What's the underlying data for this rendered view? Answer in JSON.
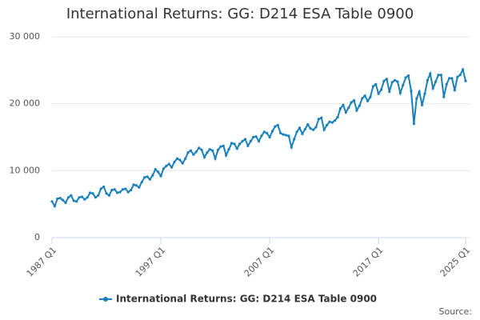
{
  "chart_data": {
    "type": "line",
    "title": "International Returns: GG: D214 ESA Table 0900",
    "source": "Source:",
    "categories": [
      "1987 Q1",
      null,
      null,
      null,
      null,
      null,
      null,
      null,
      null,
      null,
      null,
      null,
      null,
      null,
      null,
      null,
      null,
      null,
      null,
      null,
      null,
      null,
      null,
      null,
      null,
      null,
      null,
      null,
      null,
      null,
      null,
      null,
      null,
      null,
      null,
      null,
      null,
      null,
      null,
      null,
      "1997 Q1",
      null,
      null,
      null,
      null,
      null,
      null,
      null,
      null,
      null,
      null,
      null,
      null,
      null,
      null,
      null,
      null,
      null,
      null,
      null,
      null,
      null,
      null,
      null,
      null,
      null,
      null,
      null,
      null,
      null,
      null,
      null,
      null,
      null,
      null,
      null,
      null,
      null,
      null,
      null,
      "2007 Q1",
      null,
      null,
      null,
      null,
      null,
      null,
      null,
      null,
      null,
      null,
      null,
      null,
      null,
      null,
      null,
      null,
      null,
      null,
      null,
      null,
      null,
      null,
      null,
      null,
      null,
      null,
      null,
      null,
      null,
      null,
      null,
      null,
      null,
      null,
      null,
      null,
      null,
      null,
      null,
      "2017 Q1",
      null,
      null,
      null,
      null,
      null,
      null,
      null,
      null,
      null,
      null,
      null,
      null,
      null,
      null,
      null,
      null,
      null,
      null,
      null,
      null,
      null,
      null,
      null,
      null,
      null,
      null,
      null,
      null,
      null,
      null,
      null,
      "2025 Q1"
    ],
    "series": [
      {
        "name": "International Returns: GG: D214 ESA Table 0900",
        "color": "#1a80bb",
        "values": [
          5400,
          4700,
          5800,
          5900,
          5600,
          5200,
          6000,
          6300,
          5500,
          5400,
          6000,
          6100,
          5700,
          6000,
          6700,
          6600,
          6000,
          6300,
          7300,
          7600,
          6600,
          6300,
          7100,
          7200,
          6700,
          6800,
          7200,
          7300,
          6800,
          7100,
          7900,
          7800,
          7500,
          8300,
          9000,
          9100,
          8700,
          9300,
          10200,
          9800,
          9200,
          10300,
          10700,
          11000,
          10500,
          11300,
          11800,
          11600,
          11100,
          11800,
          12700,
          13000,
          12400,
          12800,
          13400,
          13100,
          12000,
          12700,
          13200,
          13000,
          11800,
          13100,
          13600,
          13700,
          12300,
          13200,
          14100,
          14000,
          13300,
          14000,
          14400,
          14700,
          13700,
          14400,
          15000,
          15100,
          14400,
          15200,
          15800,
          15600,
          15000,
          15900,
          16600,
          16800,
          15600,
          15400,
          15300,
          15200,
          13500,
          14700,
          15800,
          16400,
          15500,
          16200,
          16900,
          16300,
          16100,
          16500,
          17700,
          17900,
          16100,
          16800,
          17300,
          17200,
          17500,
          18000,
          19300,
          19800,
          18700,
          19400,
          20200,
          20500,
          19000,
          19700,
          20800,
          21200,
          20400,
          21000,
          22600,
          22900,
          21500,
          22100,
          23400,
          23700,
          21800,
          23200,
          23500,
          23300,
          21600,
          22800,
          23900,
          24200,
          21900,
          17000,
          20800,
          21800,
          19800,
          21500,
          23500,
          24500,
          22300,
          23300,
          24300,
          24300,
          21000,
          22900,
          23800,
          23800,
          22000,
          24000,
          24300,
          25100,
          23400
        ]
      }
    ],
    "ylim": [
      0,
      30000
    ],
    "yticks": [
      0,
      {
        "value": 10000,
        "label": "10 000"
      },
      {
        "value": 20000,
        "label": "20 000"
      },
      {
        "value": 30000,
        "label": "30 000"
      }
    ],
    "grid": true,
    "legend": "bottom"
  }
}
